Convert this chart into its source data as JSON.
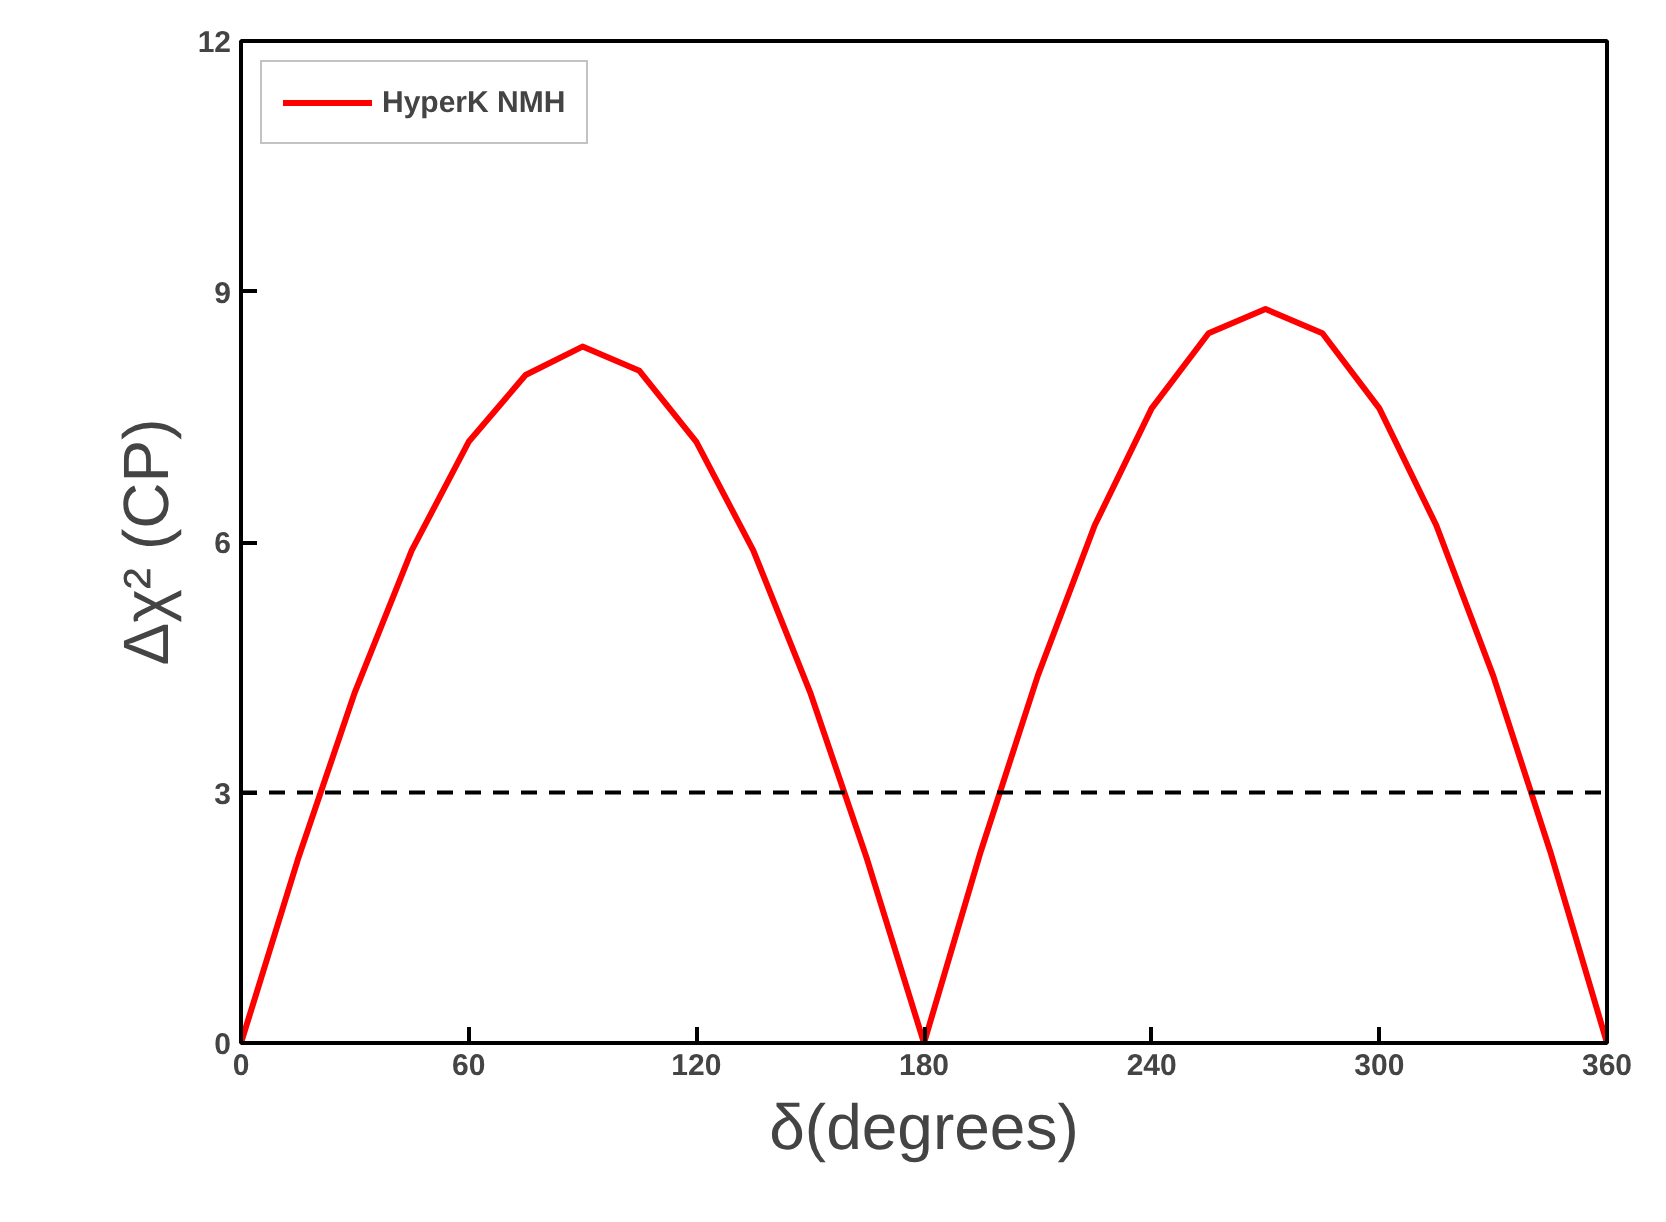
{
  "chart_data": {
    "type": "line",
    "xlabel": "δ(degrees)",
    "ylabel": "Δχ² (CP)",
    "xlim": [
      0,
      360
    ],
    "ylim": [
      0,
      12
    ],
    "xticks": [
      0,
      60,
      120,
      180,
      240,
      300,
      360
    ],
    "yticks": [
      0,
      3,
      6,
      9,
      12
    ],
    "x": [
      0,
      15,
      30,
      45,
      60,
      75,
      90,
      105,
      120,
      135,
      150,
      165,
      180,
      195,
      210,
      225,
      240,
      255,
      270,
      285,
      300,
      315,
      330,
      345,
      360
    ],
    "series": [
      {
        "name": "HyperK NMH",
        "color": "#ff0000",
        "values": [
          0,
          2.2,
          4.2,
          5.9,
          7.2,
          8.0,
          8.34,
          8.05,
          7.2,
          5.9,
          4.2,
          2.2,
          0,
          2.3,
          4.4,
          6.2,
          7.6,
          8.5,
          8.79,
          8.5,
          7.6,
          6.2,
          4.4,
          2.3,
          0
        ]
      }
    ],
    "ref_lines": [
      {
        "axis": "y",
        "value": 3,
        "color": "#000000",
        "line_style": "dashed"
      }
    ],
    "legend": "top left",
    "grid": false,
    "line_style": "solid",
    "marker": "none"
  }
}
